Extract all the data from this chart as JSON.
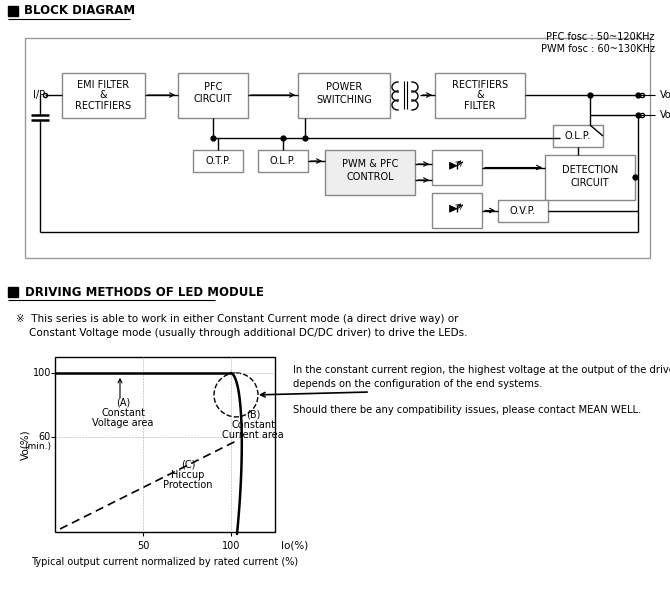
{
  "title_block": "BLOCK DIAGRAM",
  "title_driving": "DRIVING METHODS OF LED MODULE",
  "pfc_text": "PFC fosc : 50~120KHz\nPWM fosc : 60~130KHz",
  "disclaimer_text": "※  This series is able to work in either Constant Current mode (a direct drive way) or\n    Constant Voltage mode (usually through additional DC/DC driver) to drive the LEDs.",
  "right_text1": "In the constant current region, the highest voltage at the output of the driver\ndepends on the configuration of the end systems.",
  "right_text2": "Should there be any compatibility issues, please contact MEAN WELL.",
  "xlabel": "Io(%)",
  "ylabel": "Vo(%)",
  "caption": "Typical output current normalized by rated current (%)",
  "bg_color": "#ffffff"
}
